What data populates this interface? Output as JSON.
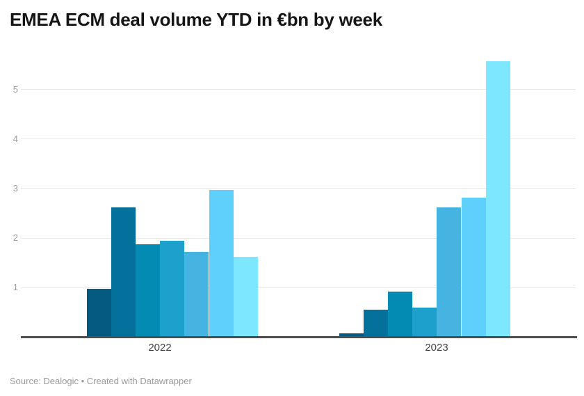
{
  "title": "EMEA ECM deal volume YTD in €bn by week",
  "source_line": "Source: Dealogic • Created with Datawrapper",
  "chart_data": {
    "type": "bar",
    "title": "EMEA ECM deal volume YTD in €bn by week",
    "categories": [
      "2022",
      "2023"
    ],
    "bars_per_group": 7,
    "series": [
      {
        "name": "2022",
        "values": [
          0.95,
          2.6,
          1.85,
          1.93,
          1.7,
          2.95,
          1.6
        ]
      },
      {
        "name": "2023",
        "values": [
          0.06,
          0.53,
          0.9,
          0.57,
          2.6,
          2.8,
          5.55
        ]
      }
    ],
    "bar_colors": [
      "#045a80",
      "#03719c",
      "#048bb4",
      "#1da0cb",
      "#46b4e1",
      "#5fcffc",
      "#7ce7ff"
    ],
    "y_ticks": [
      1,
      2,
      3,
      4,
      5
    ],
    "ylim": [
      0,
      5.6
    ],
    "grid": true,
    "legend": "none",
    "xlabel": "",
    "ylabel": ""
  },
  "colors": {
    "background": "#ffffff",
    "title_text": "#161616",
    "axis_line": "#4d4d4d",
    "gridline": "#e8e8e8",
    "y_tick_label": "#9e9e9e",
    "x_axis_label": "#404040",
    "source_text": "#9a9a9a"
  }
}
